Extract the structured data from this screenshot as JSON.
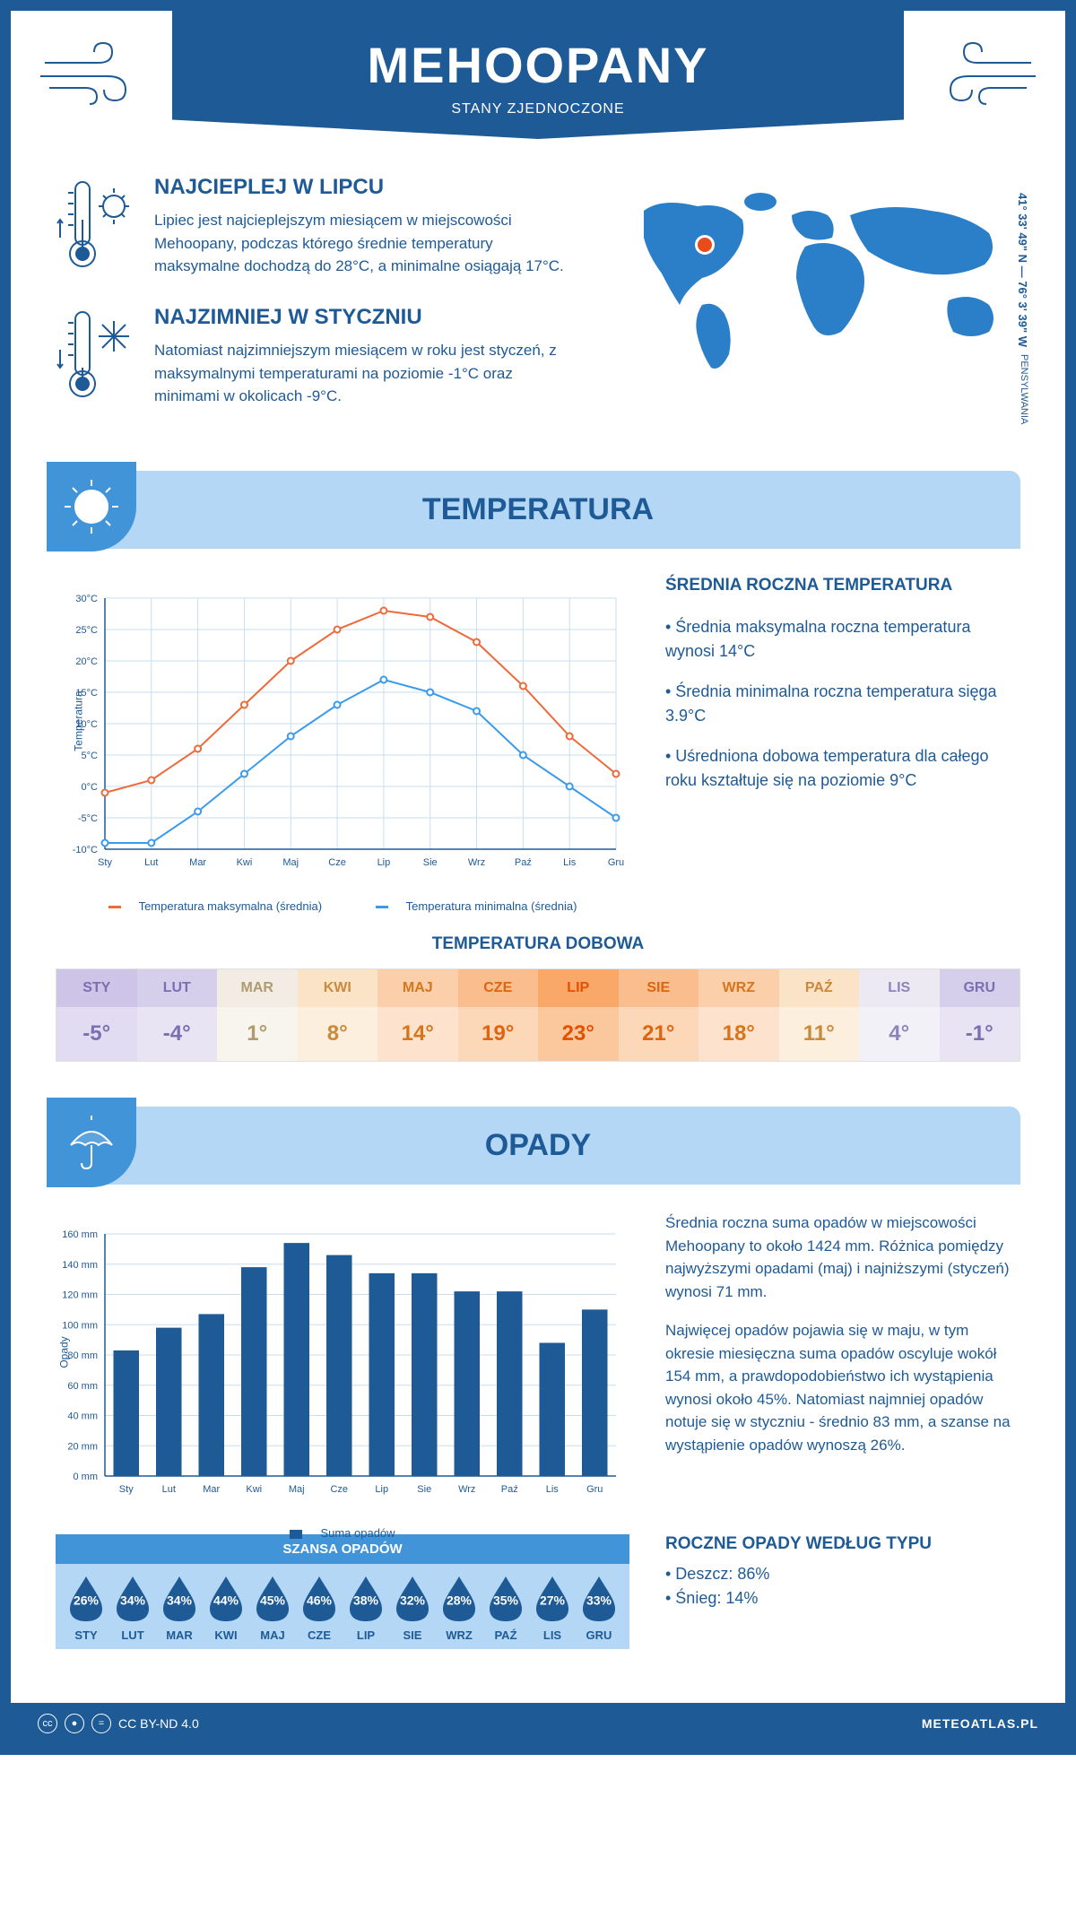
{
  "header": {
    "city": "MEHOOPANY",
    "country": "STANY ZJEDNOCZONE"
  },
  "coords": "41° 33' 49\" N — 76° 3' 39\" W",
  "region": "PENSYLWANIA",
  "warmest": {
    "title": "NAJCIEPLEJ W LIPCU",
    "text": "Lipiec jest najcieplejszym miesiącem w miejscowości Mehoopany, podczas którego średnie temperatury maksymalne dochodzą do 28°C, a minimalne osiągają 17°C."
  },
  "coldest": {
    "title": "NAJZIMNIEJ W STYCZNIU",
    "text": "Natomiast najzimniejszym miesiącem w roku jest styczeń, z maksymalnymi temperaturami na poziomie -1°C oraz minimami w okolicach -9°C."
  },
  "sections": {
    "temperature": "TEMPERATURA",
    "precipitation": "OPADY"
  },
  "temp_chart": {
    "type": "line",
    "months": [
      "Sty",
      "Lut",
      "Mar",
      "Kwi",
      "Maj",
      "Cze",
      "Lip",
      "Sie",
      "Wrz",
      "Paź",
      "Lis",
      "Gru"
    ],
    "max_series": [
      -1,
      1,
      6,
      13,
      20,
      25,
      28,
      27,
      23,
      16,
      8,
      2
    ],
    "min_series": [
      -9,
      -9,
      -4,
      2,
      8,
      13,
      17,
      15,
      12,
      5,
      0,
      -5
    ],
    "ylim": [
      -10,
      30
    ],
    "ytick_step": 5,
    "yformat": "°C",
    "max_color": "#ed6a3a",
    "min_color": "#3a9bed",
    "grid_color": "#c9deed",
    "axis_color": "#1e5a96",
    "bg_color": "#ffffff",
    "y_label": "Temperatura",
    "legend_max": "Temperatura maksymalna (średnia)",
    "legend_min": "Temperatura minimalna (średnia)"
  },
  "annual_temp": {
    "title": "ŚREDNIA ROCZNA TEMPERATURA",
    "line1": "• Średnia maksymalna roczna temperatura wynosi 14°C",
    "line2": "• Średnia minimalna roczna temperatura sięga 3.9°C",
    "line3": "• Uśredniona dobowa temperatura dla całego roku kształtuje się na poziomie 9°C"
  },
  "daily": {
    "title": "TEMPERATURA DOBOWA",
    "months": [
      "STY",
      "LUT",
      "MAR",
      "KWI",
      "MAJ",
      "CZE",
      "LIP",
      "SIE",
      "WRZ",
      "PAŹ",
      "LIS",
      "GRU"
    ],
    "temps": [
      "-5°",
      "-4°",
      "1°",
      "8°",
      "14°",
      "19°",
      "23°",
      "21°",
      "18°",
      "11°",
      "4°",
      "-1°"
    ],
    "head_colors": [
      "#cdc4e8",
      "#d6cfec",
      "#f2ece4",
      "#fae3c7",
      "#fccfab",
      "#fabd8e",
      "#f9a86a",
      "#fabd8e",
      "#fccfab",
      "#fae3c7",
      "#ece9f3",
      "#d6cfec"
    ],
    "val_colors": [
      "#e1dcf2",
      "#e8e4f4",
      "#f8f4ee",
      "#fcefde",
      "#fde3cd",
      "#fcd7b8",
      "#fbc89d",
      "#fcd7b8",
      "#fde3cd",
      "#fcefde",
      "#f3f1f8",
      "#e8e4f4"
    ],
    "text_colors": [
      "#7a6fb0",
      "#7a6fb0",
      "#b09a6f",
      "#c98a3e",
      "#d5761f",
      "#dd6410",
      "#e25100",
      "#dd6410",
      "#d5761f",
      "#c98a3e",
      "#8d84ba",
      "#7a6fb0"
    ]
  },
  "precip_chart": {
    "type": "bar",
    "months": [
      "Sty",
      "Lut",
      "Mar",
      "Kwi",
      "Maj",
      "Cze",
      "Lip",
      "Sie",
      "Wrz",
      "Paź",
      "Lis",
      "Gru"
    ],
    "values": [
      83,
      98,
      107,
      138,
      154,
      146,
      134,
      134,
      122,
      122,
      88,
      110
    ],
    "ylim": [
      0,
      160
    ],
    "ytick_step": 20,
    "yformat": " mm",
    "bar_color": "#1e5a96",
    "grid_color": "#c9deed",
    "axis_color": "#1e5a96",
    "y_label": "Opady",
    "legend": "Suma opadów"
  },
  "precip_text": {
    "p1": "Średnia roczna suma opadów w miejscowości Mehoopany to około 1424 mm. Różnica pomiędzy najwyższymi opadami (maj) i najniższymi (styczeń) wynosi 71 mm.",
    "p2": "Najwięcej opadów pojawia się w maju, w tym okresie miesięczna suma opadów oscyluje wokół 154 mm, a prawdopodobieństwo ich wystąpienia wynosi około 45%. Natomiast najmniej opadów notuje się w styczniu - średnio 83 mm, a szanse na wystąpienie opadów wynoszą 26%."
  },
  "chance": {
    "title": "SZANSA OPADÓW",
    "months": [
      "STY",
      "LUT",
      "MAR",
      "KWI",
      "MAJ",
      "CZE",
      "LIP",
      "SIE",
      "WRZ",
      "PAŹ",
      "LIS",
      "GRU"
    ],
    "pct": [
      "26%",
      "34%",
      "34%",
      "44%",
      "45%",
      "46%",
      "38%",
      "32%",
      "28%",
      "35%",
      "27%",
      "33%"
    ],
    "drop_color": "#1e5a96"
  },
  "precip_type": {
    "title": "ROCZNE OPADY WEDŁUG TYPU",
    "rain": "• Deszcz: 86%",
    "snow": "• Śnieg: 14%"
  },
  "footer": {
    "license": "CC BY-ND 4.0",
    "site": "METEOATLAS.PL"
  }
}
